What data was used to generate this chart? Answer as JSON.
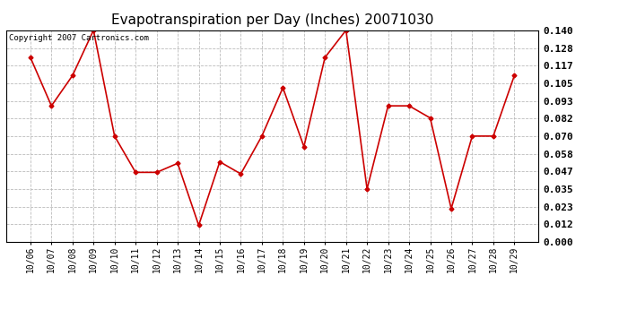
{
  "title": "Evapotranspiration per Day (Inches) 20071030",
  "copyright": "Copyright 2007 Cartronics.com",
  "x_labels": [
    "10/06",
    "10/07",
    "10/08",
    "10/09",
    "10/10",
    "10/11",
    "10/12",
    "10/13",
    "10/14",
    "10/15",
    "10/16",
    "10/17",
    "10/18",
    "10/19",
    "10/20",
    "10/21",
    "10/22",
    "10/23",
    "10/24",
    "10/25",
    "10/26",
    "10/27",
    "10/28",
    "10/29"
  ],
  "y_values": [
    0.122,
    0.09,
    0.11,
    0.14,
    0.07,
    0.046,
    0.046,
    0.052,
    0.011,
    0.053,
    0.045,
    0.07,
    0.102,
    0.063,
    0.122,
    0.14,
    0.035,
    0.09,
    0.09,
    0.082,
    0.022,
    0.07,
    0.07,
    0.11
  ],
  "line_color": "#cc0000",
  "marker": "D",
  "marker_size": 2.5,
  "line_width": 1.2,
  "ylim": [
    0.0,
    0.14
  ],
  "yticks": [
    0.0,
    0.012,
    0.023,
    0.035,
    0.047,
    0.058,
    0.07,
    0.082,
    0.093,
    0.105,
    0.117,
    0.128,
    0.14
  ],
  "bg_color": "#ffffff",
  "plot_bg_color": "#ffffff",
  "grid_color": "#bbbbbb",
  "title_fontsize": 11,
  "copyright_fontsize": 6.5,
  "tick_label_fontsize": 7,
  "ytick_label_fontsize": 8
}
